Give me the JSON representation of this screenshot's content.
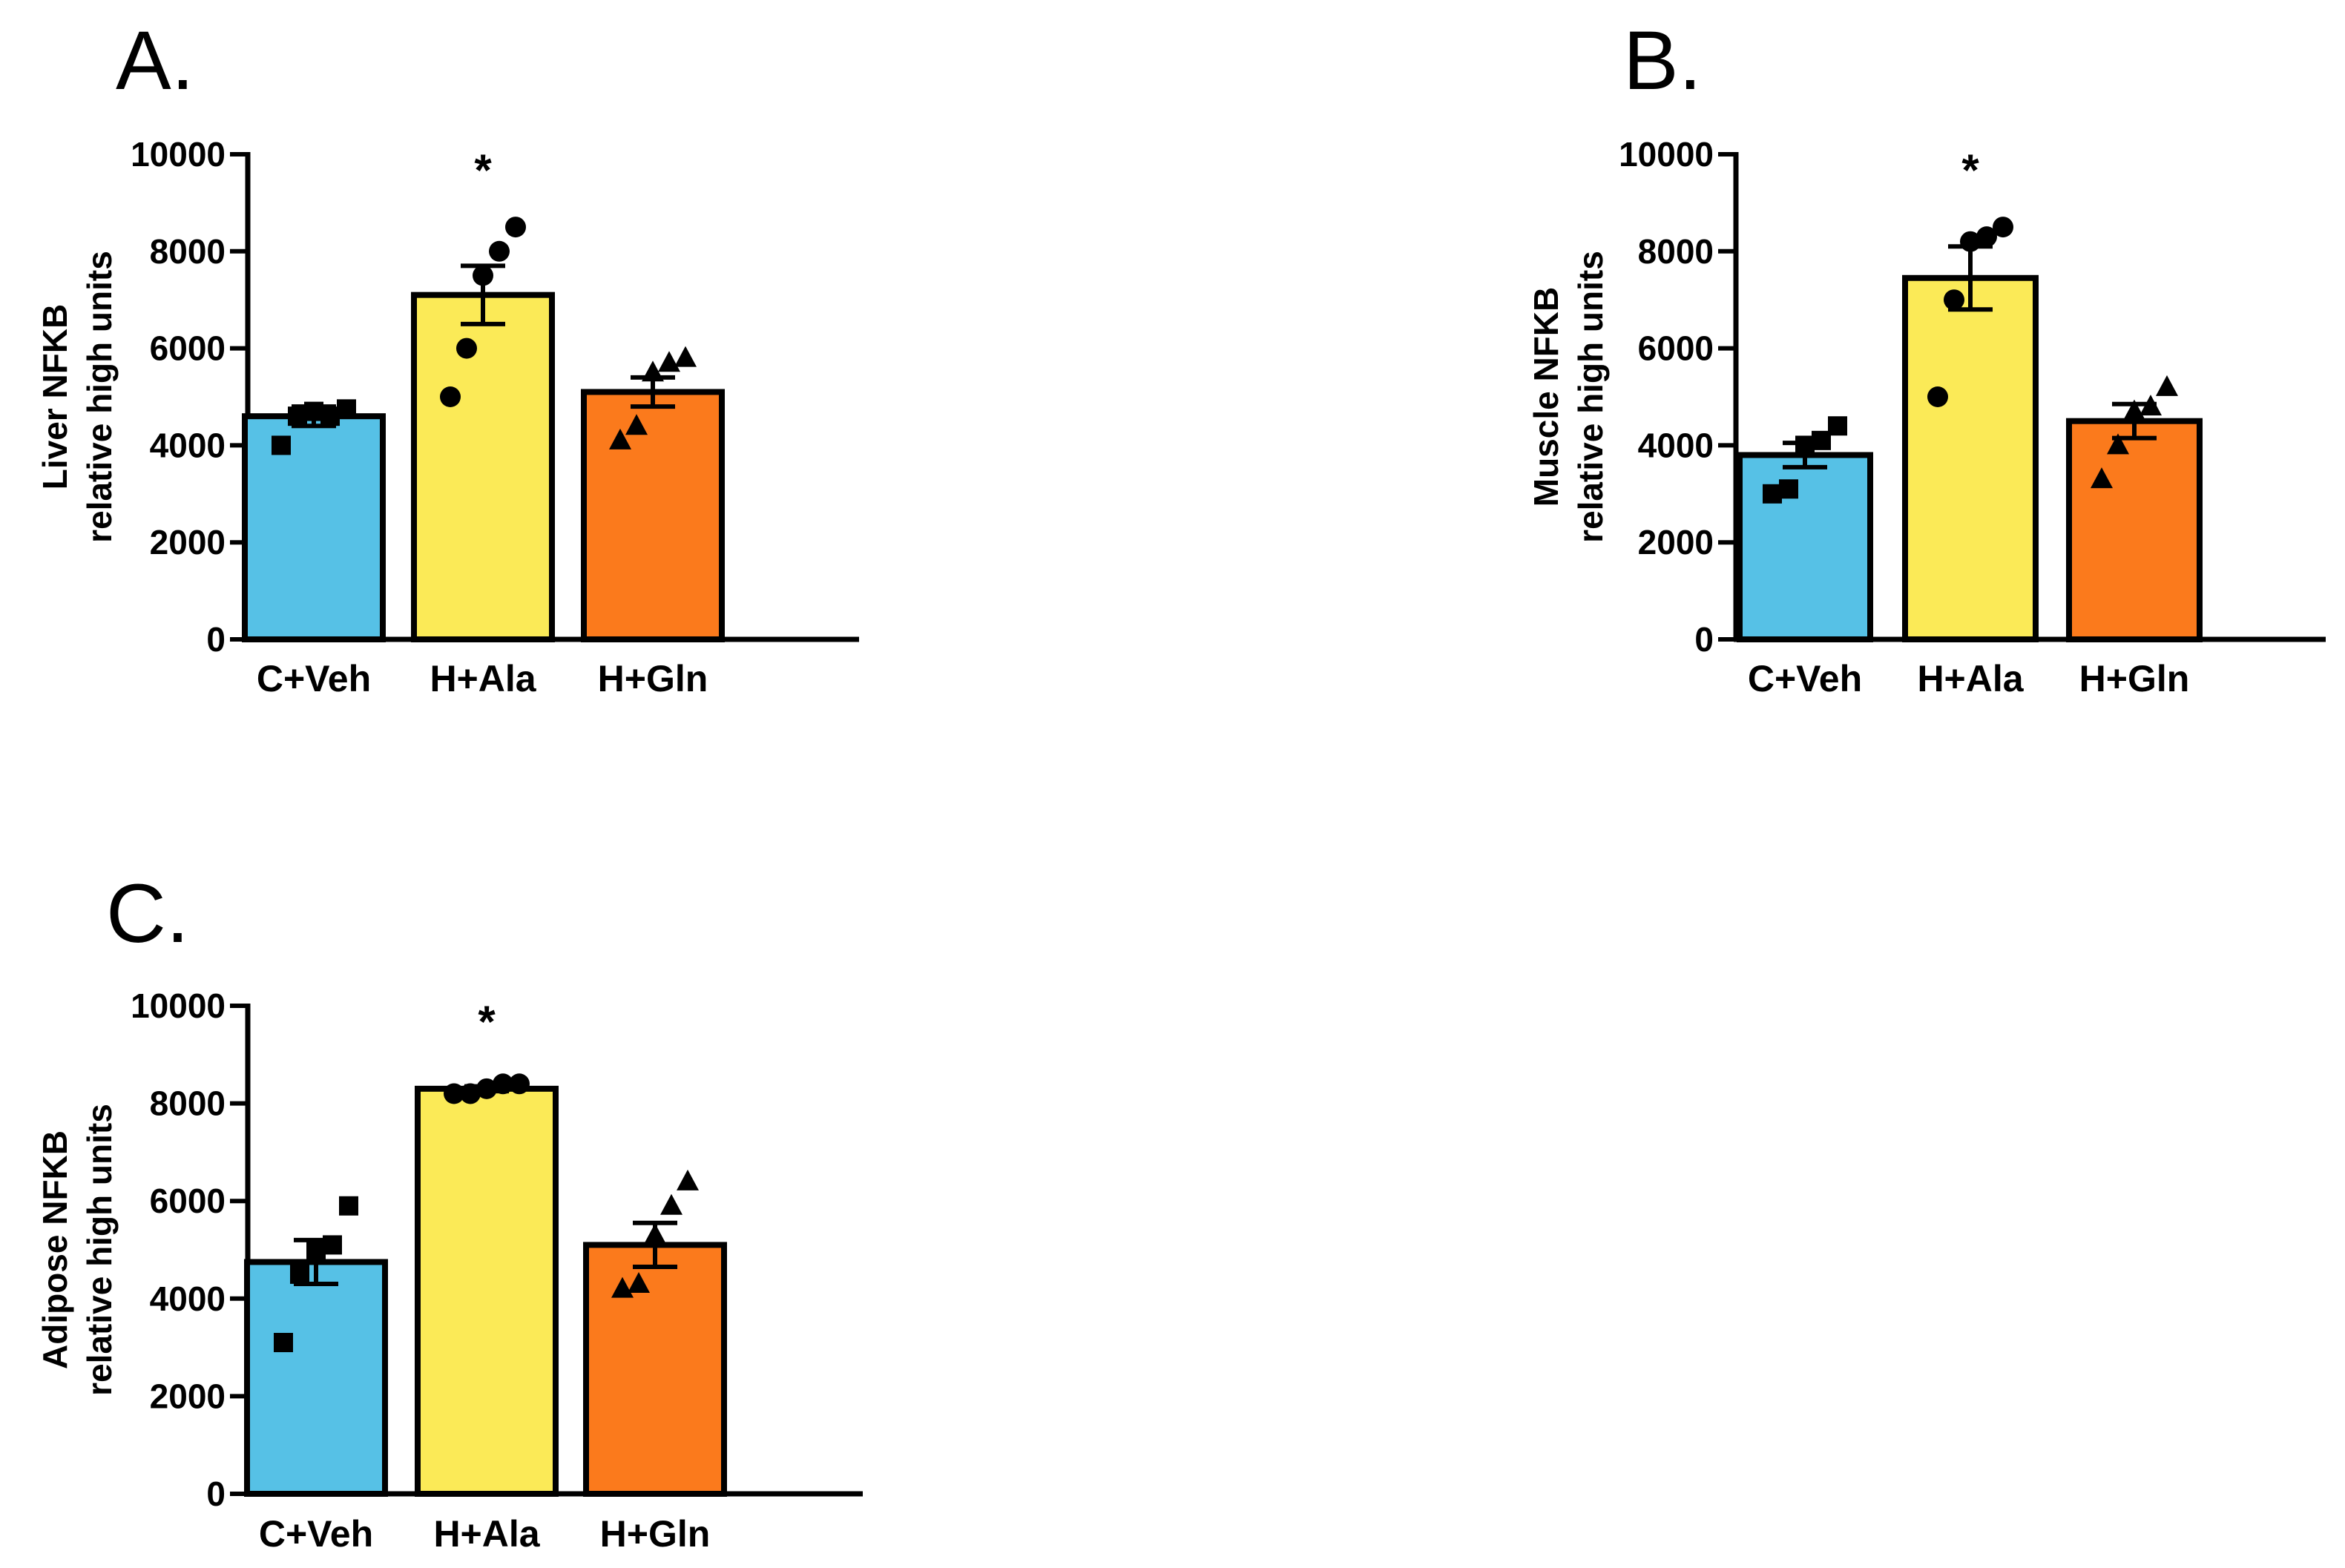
{
  "figure": {
    "panels": 3
  },
  "colors": {
    "C+Veh": "#56c1e6",
    "H+Ala": "#fbea57",
    "H+Gln": "#fb7a1c",
    "outline": "#000000"
  },
  "chart_data": [
    {
      "type": "bar",
      "panel_label": "A.",
      "categories": [
        "C+Veh",
        "H+Ala",
        "H+Gln"
      ],
      "values": [
        4600,
        7100,
        5100
      ],
      "sem": [
        200,
        600,
        300
      ],
      "points": [
        [
          4000,
          4600,
          4700,
          4600,
          4750
        ],
        [
          5000,
          6000,
          7500,
          8000,
          8500
        ],
        [
          4100,
          4400,
          5500,
          5700,
          5800
        ]
      ],
      "markers": [
        "square",
        "circle",
        "triangle"
      ],
      "significance": [
        "",
        "*",
        ""
      ],
      "ylabel": [
        "Liver NFKB",
        "relative high units"
      ],
      "ylim": [
        0,
        10000
      ],
      "yticks": [
        0,
        2000,
        4000,
        6000,
        8000,
        10000
      ]
    },
    {
      "type": "bar",
      "panel_label": "B.",
      "categories": [
        "C+Veh",
        "H+Ala",
        "H+Gln"
      ],
      "values": [
        3800,
        7450,
        4500
      ],
      "sem": [
        250,
        650,
        350
      ],
      "points": [
        [
          3000,
          3100,
          4000,
          4100,
          4400
        ],
        [
          5000,
          7000,
          8200,
          8300,
          8500
        ],
        [
          3300,
          4000,
          4700,
          4800,
          5200
        ]
      ],
      "markers": [
        "square",
        "circle",
        "triangle"
      ],
      "significance": [
        "",
        "*",
        ""
      ],
      "ylabel": [
        "Muscle NFKB",
        "relative high units"
      ],
      "ylim": [
        0,
        10000
      ],
      "yticks": [
        0,
        2000,
        4000,
        6000,
        8000,
        10000
      ]
    },
    {
      "type": "bar",
      "panel_label": "C.",
      "categories": [
        "C+Veh",
        "H+Ala",
        "H+Gln"
      ],
      "values": [
        4750,
        8300,
        5100
      ],
      "sem": [
        450,
        50,
        450
      ],
      "points": [
        [
          3100,
          4500,
          5000,
          5100,
          5900
        ],
        [
          8200,
          8200,
          8300,
          8400,
          8400
        ],
        [
          4200,
          4300,
          5300,
          5900,
          6400
        ]
      ],
      "markers": [
        "square",
        "circle",
        "triangle"
      ],
      "significance": [
        "",
        "*",
        ""
      ],
      "ylabel": [
        "Adipose NFKB",
        "relative high units"
      ],
      "ylim": [
        0,
        10000
      ],
      "yticks": [
        0,
        2000,
        4000,
        6000,
        8000,
        10000
      ]
    }
  ]
}
